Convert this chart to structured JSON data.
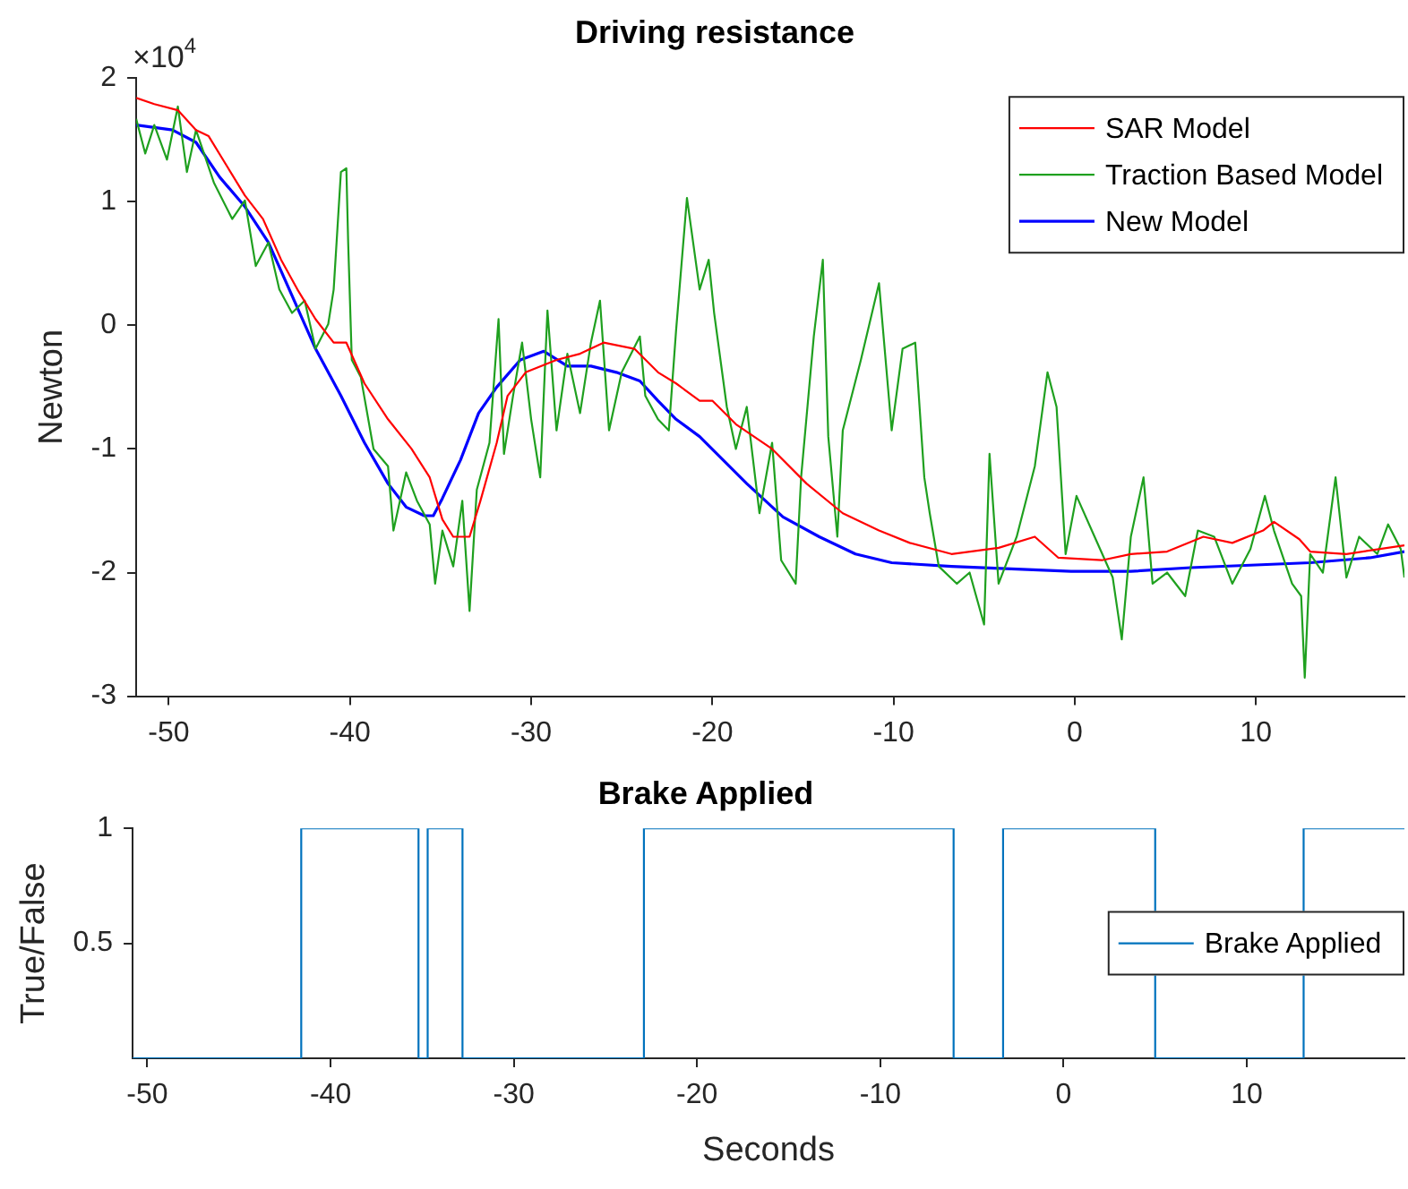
{
  "chart_data": [
    {
      "type": "line",
      "title": "Driving resistance",
      "ylabel": "Newton",
      "annotations": [
        "×10$^{4}$"
      ],
      "legend": "top right",
      "xlim": [
        -51.8,
        18.2
      ],
      "xticks": [
        -50,
        -40,
        -30,
        -20,
        -10,
        0,
        10
      ],
      "ylim": [
        -3,
        2
      ],
      "yticks": [
        -3,
        -2,
        -1,
        0,
        1,
        2
      ],
      "series": [
        {
          "name": "SAR Model",
          "color": "#ff0000",
          "x": [
            -51.8,
            -50.8,
            -49.5,
            -48.5,
            -47.8,
            -46.8,
            -45.8,
            -44.8,
            -43.8,
            -42.9,
            -41.9,
            -40.9,
            -40.2,
            -39.2,
            -37.9,
            -36.6,
            -35.6,
            -34.9,
            -34.3,
            -33.4,
            -32.8,
            -31.9,
            -31.3,
            -30.3,
            -28.6,
            -27.3,
            -26.0,
            -24.3,
            -23.0,
            -22.0,
            -20.7,
            -20.0,
            -18.7,
            -16.7,
            -14.8,
            -12.8,
            -10.8,
            -9.1,
            -6.8,
            -4.2,
            -2.2,
            -0.9,
            1.5,
            3.1,
            5.1,
            7.1,
            8.7,
            10.4,
            11.0,
            12.4,
            13.0,
            15.0,
            18.2
          ],
          "values": [
            1.84,
            1.79,
            1.74,
            1.58,
            1.53,
            1.29,
            1.05,
            0.86,
            0.53,
            0.29,
            0.05,
            -0.14,
            -0.14,
            -0.47,
            -0.76,
            -1.0,
            -1.23,
            -1.57,
            -1.71,
            -1.71,
            -1.42,
            -0.95,
            -0.57,
            -0.38,
            -0.28,
            -0.23,
            -0.14,
            -0.19,
            -0.38,
            -0.47,
            -0.61,
            -0.61,
            -0.8,
            -1.0,
            -1.28,
            -1.52,
            -1.66,
            -1.76,
            -1.85,
            -1.8,
            -1.71,
            -1.88,
            -1.9,
            -1.85,
            -1.83,
            -1.71,
            -1.76,
            -1.66,
            -1.59,
            -1.73,
            -1.83,
            -1.85,
            -1.78
          ]
        },
        {
          "name": "Traction Based Model",
          "color": "#1fa01f",
          "x": [
            -51.8,
            -51.3,
            -50.8,
            -50.1,
            -49.5,
            -49.0,
            -48.5,
            -47.5,
            -46.5,
            -45.8,
            -45.2,
            -44.5,
            -43.9,
            -43.2,
            -42.5,
            -41.9,
            -41.2,
            -40.9,
            -40.5,
            -40.2,
            -40.1,
            -39.9,
            -39.4,
            -38.7,
            -37.9,
            -37.6,
            -36.9,
            -36.3,
            -35.6,
            -35.3,
            -34.9,
            -34.3,
            -33.8,
            -33.4,
            -33.0,
            -32.3,
            -31.8,
            -31.5,
            -31.0,
            -30.5,
            -30.0,
            -29.5,
            -29.1,
            -28.6,
            -28.0,
            -27.3,
            -26.7,
            -26.2,
            -25.7,
            -25.0,
            -24.0,
            -23.7,
            -23.0,
            -22.4,
            -22.0,
            -21.4,
            -20.7,
            -20.2,
            -19.9,
            -19.2,
            -18.7,
            -18.1,
            -17.4,
            -16.7,
            -16.2,
            -15.4,
            -15.1,
            -14.4,
            -13.9,
            -13.6,
            -13.1,
            -12.8,
            -11.8,
            -10.8,
            -10.1,
            -9.5,
            -8.8,
            -8.3,
            -8.0,
            -7.5,
            -6.5,
            -5.8,
            -5.0,
            -4.7,
            -4.2,
            -3.2,
            -2.2,
            -1.5,
            -1.0,
            -0.5,
            0.1,
            1.1,
            2.1,
            2.6,
            3.1,
            3.8,
            4.3,
            5.1,
            6.1,
            6.8,
            7.7,
            8.7,
            9.7,
            10.5,
            11.0,
            12.0,
            12.5,
            12.7,
            13.0,
            13.7,
            14.4,
            15.0,
            15.7,
            16.7,
            17.3,
            18.0,
            18.2
          ],
          "values": [
            1.67,
            1.39,
            1.62,
            1.34,
            1.77,
            1.24,
            1.58,
            1.15,
            0.86,
            1.01,
            0.48,
            0.67,
            0.29,
            0.1,
            0.2,
            -0.19,
            0.01,
            0.29,
            1.24,
            1.27,
            0.67,
            -0.28,
            -0.42,
            -1.0,
            -1.14,
            -1.66,
            -1.19,
            -1.42,
            -1.61,
            -2.09,
            -1.66,
            -1.95,
            -1.42,
            -2.31,
            -1.33,
            -0.95,
            0.05,
            -1.04,
            -0.57,
            -0.14,
            -0.76,
            -1.23,
            0.12,
            -0.85,
            -0.23,
            -0.71,
            -0.14,
            0.2,
            -0.85,
            -0.38,
            -0.09,
            -0.57,
            -0.76,
            -0.85,
            -0.04,
            1.03,
            0.29,
            0.53,
            0.1,
            -0.66,
            -1.0,
            -0.66,
            -1.52,
            -0.95,
            -1.9,
            -2.09,
            -1.23,
            -0.09,
            0.53,
            -0.9,
            -1.71,
            -0.85,
            -0.28,
            0.34,
            -0.85,
            -0.19,
            -0.14,
            -1.23,
            -1.52,
            -1.95,
            -2.09,
            -2.0,
            -2.42,
            -1.04,
            -2.09,
            -1.71,
            -1.14,
            -0.38,
            -0.66,
            -1.85,
            -1.38,
            -1.71,
            -2.04,
            -2.54,
            -1.71,
            -1.23,
            -2.09,
            -2.0,
            -2.19,
            -1.66,
            -1.71,
            -2.09,
            -1.81,
            -1.38,
            -1.66,
            -2.09,
            -2.19,
            -2.85,
            -1.85,
            -2.0,
            -1.23,
            -2.04,
            -1.71,
            -1.85,
            -1.61,
            -1.81,
            -2.04
          ]
        },
        {
          "name": "New Model",
          "color": "#0000ff",
          "x": [
            -51.8,
            -49.8,
            -48.5,
            -47.2,
            -45.8,
            -44.5,
            -43.2,
            -41.9,
            -40.5,
            -39.2,
            -37.9,
            -36.9,
            -35.9,
            -35.4,
            -34.9,
            -33.9,
            -32.9,
            -31.9,
            -30.6,
            -29.3,
            -28.0,
            -26.7,
            -25.3,
            -24.0,
            -23.0,
            -22.0,
            -20.7,
            -19.4,
            -18.1,
            -16.1,
            -14.1,
            -12.1,
            -10.1,
            -6.8,
            -3.5,
            -0.2,
            3.1,
            6.4,
            9.7,
            13.0,
            16.3,
            18.2
          ],
          "values": [
            1.62,
            1.58,
            1.48,
            1.2,
            0.96,
            0.67,
            0.24,
            -0.19,
            -0.57,
            -0.95,
            -1.28,
            -1.47,
            -1.54,
            -1.54,
            -1.4,
            -1.09,
            -0.71,
            -0.5,
            -0.28,
            -0.21,
            -0.33,
            -0.33,
            -0.38,
            -0.45,
            -0.61,
            -0.76,
            -0.9,
            -1.09,
            -1.28,
            -1.55,
            -1.71,
            -1.85,
            -1.92,
            -1.95,
            -1.97,
            -1.99,
            -1.99,
            -1.96,
            -1.94,
            -1.92,
            -1.88,
            -1.83
          ]
        }
      ]
    },
    {
      "type": "step",
      "title": "Brake Applied",
      "xlabel": "Seconds",
      "ylabel": "True/False",
      "legend": "right",
      "xlim": [
        -50.8,
        18.6
      ],
      "xticks": [
        -50,
        -40,
        -30,
        -20,
        -10,
        0,
        10
      ],
      "ylim": [
        0,
        1
      ],
      "yticks": [
        0.5,
        1
      ],
      "series": [
        {
          "name": "Brake Applied",
          "color": "#0072bd",
          "x": [
            -50.8,
            -41.6,
            -35.2,
            -34.7,
            -32.8,
            -22.9,
            -6.0,
            -3.3,
            5.0,
            13.1,
            18.6
          ],
          "values": [
            0,
            1,
            0,
            1,
            0,
            1,
            0,
            1,
            0,
            1,
            1
          ]
        }
      ]
    }
  ]
}
